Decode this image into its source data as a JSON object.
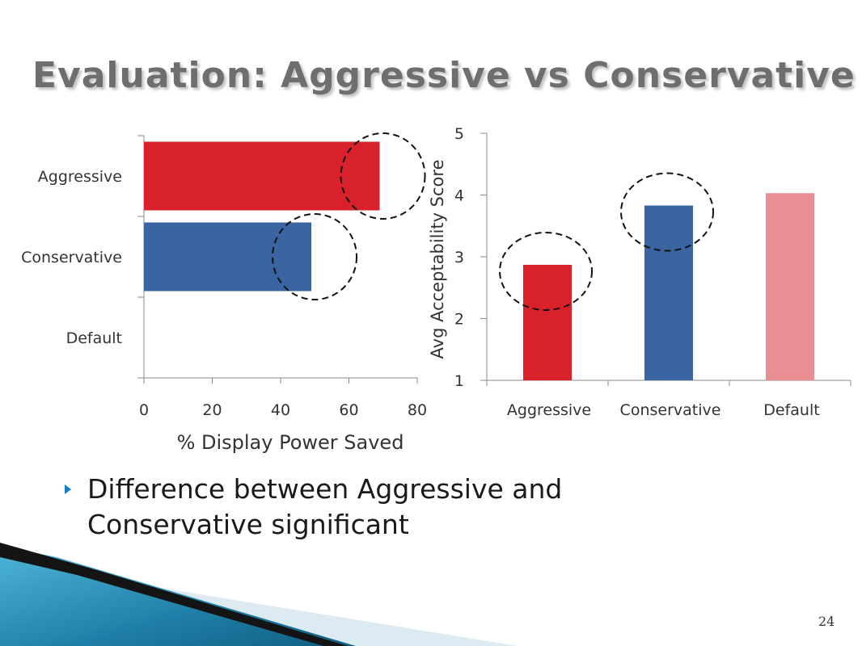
{
  "slide": {
    "title": "Evaluation: Aggressive vs Conservative",
    "bullet": "Difference between Aggressive and Conservative significant",
    "page_number": "24"
  },
  "chart_data": [
    {
      "type": "bar",
      "orientation": "horizontal",
      "categories": [
        "Aggressive",
        "Conservative",
        "Default"
      ],
      "values": [
        69,
        49,
        0
      ],
      "colors": [
        "#d9212c",
        "#3a65a0",
        "#e98e93"
      ],
      "xlabel": "% Display Power Saved",
      "ylabel": "",
      "xlim": [
        0,
        80
      ],
      "xticks": [
        "0",
        "20",
        "40",
        "60",
        "80"
      ],
      "highlighted": [
        "Aggressive",
        "Conservative"
      ]
    },
    {
      "type": "bar",
      "orientation": "vertical",
      "categories": [
        "Aggressive",
        "Conservative",
        "Default"
      ],
      "values": [
        2.87,
        3.83,
        4.03
      ],
      "colors": [
        "#d9212c",
        "#3a65a0",
        "#e98e93"
      ],
      "xlabel": "",
      "ylabel": "Avg Acceptability Score",
      "ylim": [
        1,
        5
      ],
      "yticks": [
        "1",
        "2",
        "3",
        "4",
        "5"
      ],
      "highlighted": [
        "Aggressive",
        "Conservative"
      ]
    }
  ]
}
